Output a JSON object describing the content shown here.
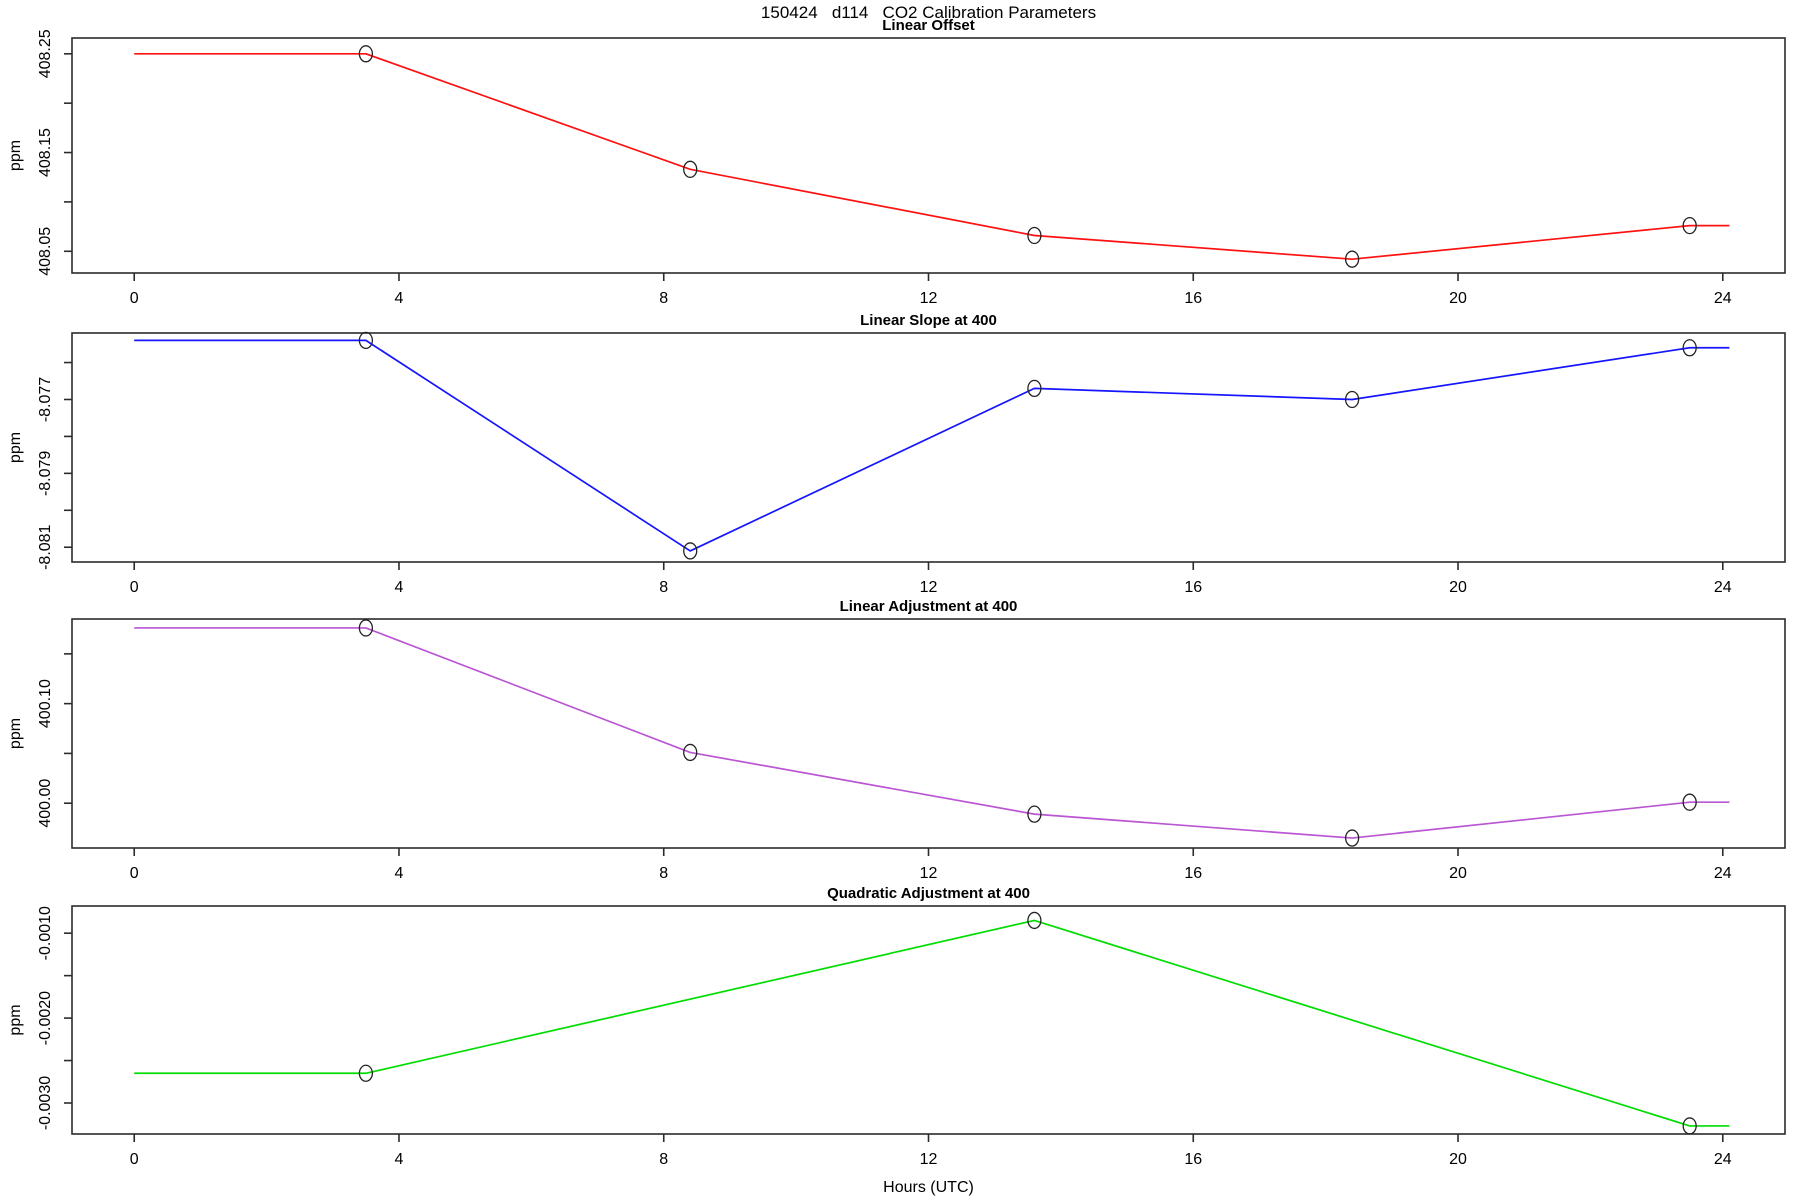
{
  "page_title": "150424   d114   CO2 Calibration Parameters",
  "chart_data": {
    "type": "line",
    "title": "150424   d114   CO2 Calibration Parameters",
    "xlabel": "Hours (UTC)",
    "x_ticks": [
      0,
      4,
      8,
      12,
      16,
      20,
      24
    ],
    "xlim": [
      -0.94,
      24.94
    ],
    "grid": false,
    "legend": "none",
    "point_marker": "open-circle",
    "panels": [
      {
        "title": "Linear Offset",
        "ylabel": "ppm",
        "color": "#ff1111",
        "points": {
          "x": [
            3.5,
            8.4,
            13.6,
            18.4,
            23.5
          ],
          "y": [
            408.25,
            408.133,
            408.066,
            408.042,
            408.076
          ]
        },
        "line": {
          "x": [
            0,
            3.5,
            8.4,
            13.6,
            18.4,
            23.5,
            24.1
          ],
          "y": [
            408.25,
            408.25,
            408.133,
            408.066,
            408.042,
            408.076,
            408.076
          ]
        },
        "ylim": [
          408.028,
          408.266
        ],
        "y_ticks": [
          {
            "v": 408.05,
            "label": "408.05"
          },
          {
            "v": 408.1,
            "label": ""
          },
          {
            "v": 408.15,
            "label": "408.15"
          },
          {
            "v": 408.2,
            "label": ""
          },
          {
            "v": 408.25,
            "label": "408.25"
          }
        ]
      },
      {
        "title": "Linear Slope at 400",
        "ylabel": "ppm",
        "color": "#1515ff",
        "points": {
          "x": [
            3.5,
            8.4,
            13.6,
            18.4,
            23.5
          ],
          "y": [
            -8.0754,
            -8.0811,
            -8.0767,
            -8.077,
            -8.0756
          ]
        },
        "line": {
          "x": [
            0,
            3.5,
            8.4,
            13.6,
            18.4,
            23.5,
            24.1
          ],
          "y": [
            -8.0754,
            -8.0754,
            -8.0811,
            -8.0767,
            -8.077,
            -8.0756,
            -8.0756
          ]
        },
        "ylim": [
          -8.0814,
          -8.0752
        ],
        "y_ticks": [
          {
            "v": -8.081,
            "label": "-8.081"
          },
          {
            "v": -8.08,
            "label": ""
          },
          {
            "v": -8.079,
            "label": "-8.079"
          },
          {
            "v": -8.078,
            "label": ""
          },
          {
            "v": -8.077,
            "label": "-8.077"
          },
          {
            "v": -8.076,
            "label": ""
          }
        ]
      },
      {
        "title": "Linear Adjustment at 400",
        "ylabel": "ppm",
        "color": "#ba55d3",
        "points": {
          "x": [
            3.5,
            8.4,
            13.6,
            18.4,
            23.5
          ],
          "y": [
            400.176,
            400.051,
            399.989,
            399.965,
            400.001
          ]
        },
        "line": {
          "x": [
            0,
            3.5,
            8.4,
            13.6,
            18.4,
            23.5,
            24.1
          ],
          "y": [
            400.176,
            400.176,
            400.051,
            399.989,
            399.965,
            400.001,
            400.001
          ]
        },
        "ylim": [
          399.955,
          400.185
        ],
        "y_ticks": [
          {
            "v": 400.0,
            "label": "400.00"
          },
          {
            "v": 400.05,
            "label": ""
          },
          {
            "v": 400.1,
            "label": "400.10"
          },
          {
            "v": 400.15,
            "label": ""
          }
        ]
      },
      {
        "title": "Quadratic Adjustment at 400",
        "ylabel": "ppm",
        "color": "#00dd00",
        "points": {
          "x": [
            3.5,
            13.6,
            23.5
          ],
          "y": [
            -0.00265,
            -0.00085,
            -0.00327
          ]
        },
        "line": {
          "x": [
            0,
            3.5,
            13.6,
            23.5,
            24.1
          ],
          "y": [
            -0.00265,
            -0.00265,
            -0.00085,
            -0.00327,
            -0.00327
          ]
        },
        "ylim": [
          -0.003365,
          -0.00068
        ],
        "y_ticks": [
          {
            "v": -0.003,
            "label": "-0.0030"
          },
          {
            "v": -0.0025,
            "label": ""
          },
          {
            "v": -0.002,
            "label": "-0.0020"
          },
          {
            "v": -0.0015,
            "label": ""
          },
          {
            "v": -0.001,
            "label": "-0.0010"
          }
        ]
      }
    ]
  }
}
